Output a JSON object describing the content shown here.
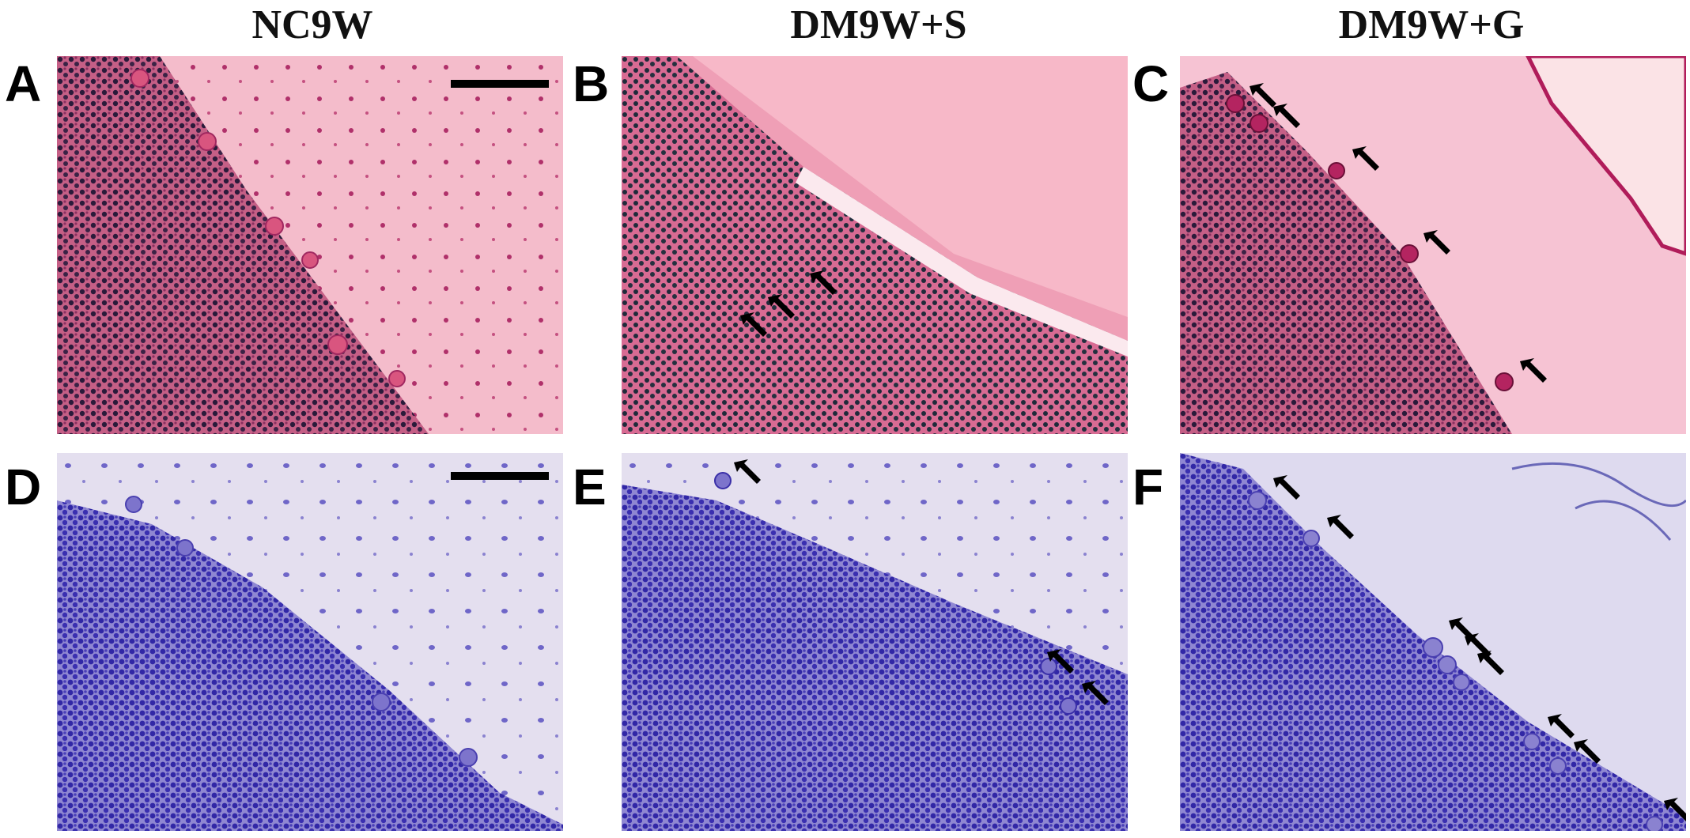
{
  "column_titles": [
    "NC9W",
    "DM9W+S",
    "DM9W+G"
  ],
  "panels": [
    {
      "label": "A"
    },
    {
      "label": "B"
    },
    {
      "label": "C"
    },
    {
      "label": "D"
    },
    {
      "label": "E"
    },
    {
      "label": "F"
    }
  ]
}
